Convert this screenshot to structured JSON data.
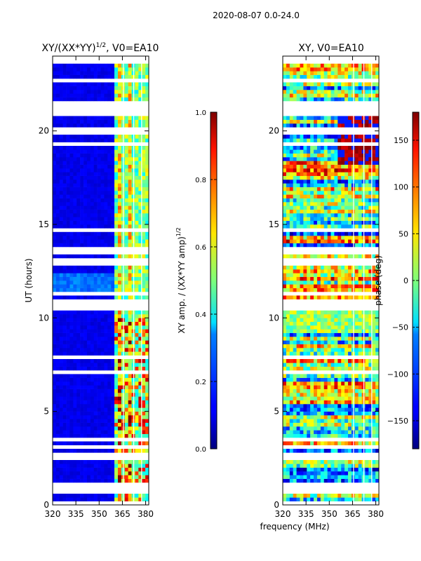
{
  "figure": {
    "suptitle": "2020-08-07 0.0-24.0",
    "xlabel": "frequency (MHz)"
  },
  "chart_data": [
    {
      "type": "heatmap",
      "title": "XY/(XX*YY)",
      "title_exponent": "1/2",
      "title_suffix": ", V0=EA10",
      "xlabel": "frequency (MHz)",
      "ylabel": "UT (hours)",
      "xlim": [
        320,
        382
      ],
      "ylim": [
        0,
        24
      ],
      "xticks": [
        320,
        335,
        350,
        365,
        380
      ],
      "yticks": [
        0,
        5,
        10,
        15,
        20
      ],
      "colorbar": {
        "label": "XY amp. / (XX*YY amp)",
        "label_exponent": "1/2",
        "range": [
          0.0,
          1.0
        ],
        "ticks": [
          0.0,
          0.2,
          0.4,
          0.6,
          0.8,
          1.0
        ],
        "tick_labels": [
          "0.0",
          "0.2",
          "0.4",
          "0.6",
          "0.8",
          "1.0"
        ]
      }
    },
    {
      "type": "heatmap",
      "title": "XY, V0=EA10",
      "xlabel": "frequency (MHz)",
      "ylabel": "",
      "xlim": [
        320,
        382
      ],
      "ylim": [
        0,
        24
      ],
      "xticks": [
        320,
        335,
        350,
        365,
        380
      ],
      "yticks": [
        0,
        5,
        10,
        15,
        20
      ],
      "colorbar": {
        "label": "phase (deg)",
        "range": [
          -180,
          180
        ],
        "ticks": [
          -150,
          -100,
          -50,
          0,
          50,
          100,
          150
        ],
        "tick_labels": [
          "−150",
          "−100",
          "−50",
          "0",
          "50",
          "100",
          "150"
        ]
      }
    }
  ]
}
